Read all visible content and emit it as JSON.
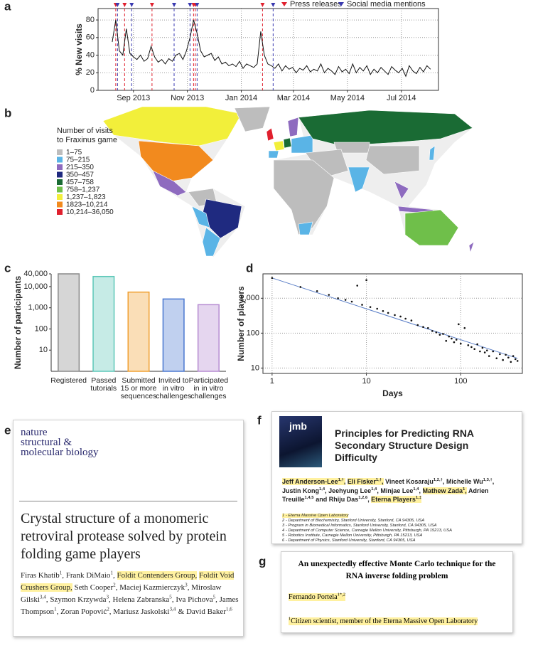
{
  "panel_labels": [
    "a",
    "b",
    "c",
    "d",
    "e",
    "f",
    "g"
  ],
  "chart_data": [
    {
      "type": "line",
      "y_label": "% New visits",
      "color": "#111111",
      "grid": true,
      "legend": "top-right",
      "x": [
        16,
        20,
        24,
        28,
        32,
        36,
        40,
        44,
        48,
        52,
        56,
        60,
        64,
        68,
        72,
        76,
        80,
        84,
        88,
        92,
        96,
        100,
        104,
        108,
        112,
        116,
        120,
        124,
        128,
        132,
        136,
        140,
        144,
        148,
        152,
        156,
        160,
        164,
        168,
        172,
        176,
        180,
        184,
        188,
        192,
        196,
        200,
        204,
        208,
        212,
        216,
        220,
        224,
        228,
        232,
        236,
        240,
        244,
        248,
        252,
        256,
        260,
        264,
        268,
        272,
        276,
        280,
        284,
        288,
        292,
        296,
        300,
        304,
        308,
        312,
        316,
        320,
        324,
        328,
        332,
        336,
        340,
        344,
        348,
        352,
        356,
        360,
        364,
        368,
        372,
        376
      ],
      "values": [
        55,
        80,
        45,
        40,
        70,
        42,
        38,
        35,
        40,
        33,
        36,
        50,
        38,
        32,
        35,
        30,
        36,
        33,
        40,
        42,
        35,
        45,
        60,
        80,
        65,
        45,
        38,
        40,
        42,
        34,
        38,
        30,
        32,
        28,
        30,
        27,
        33,
        25,
        30,
        28,
        26,
        30,
        67,
        40,
        30,
        28,
        25,
        30,
        22,
        28,
        24,
        26,
        20,
        25,
        23,
        28,
        21,
        24,
        22,
        30,
        20,
        25,
        22,
        18,
        27,
        21,
        24,
        19,
        30,
        20,
        26,
        22,
        28,
        18,
        24,
        20,
        26,
        22,
        18,
        27,
        23,
        20,
        25,
        16,
        28,
        22,
        19,
        26,
        21,
        28,
        24
      ],
      "xlim": [
        0,
        385
      ],
      "ylim": [
        0,
        93
      ],
      "xticks": [
        {
          "value": 40,
          "label": "Sep 2013"
        },
        {
          "value": 101,
          "label": "Nov 2013"
        },
        {
          "value": 162,
          "label": "Jan 2014"
        },
        {
          "value": 221,
          "label": "Mar 2014"
        },
        {
          "value": 282,
          "label": "May 2014"
        },
        {
          "value": 343,
          "label": "Jul 2014"
        }
      ],
      "yticks": [
        0,
        20,
        40,
        60,
        80
      ],
      "events": [
        {
          "name": "Press releases",
          "color": "#e0202e",
          "x": [
            20,
            30,
            61,
            108,
            110,
            186
          ]
        },
        {
          "name": "Social media mentions",
          "color": "#3a3ab0",
          "x": [
            22,
            38,
            86,
            104,
            112,
            198
          ]
        }
      ]
    },
    {
      "type": "bar",
      "y_label": "Number of participants",
      "log_y": true,
      "categories": [
        [
          "Registered"
        ],
        [
          "Passed",
          "tutorials"
        ],
        [
          "Submitted",
          "15 or more",
          "sequences"
        ],
        [
          "Invited to",
          "in vitro",
          "challenges"
        ],
        [
          "Participated",
          "in in vitro",
          "challenges"
        ]
      ],
      "values": [
        40000,
        30000,
        5500,
        2600,
        1400
      ],
      "colors": [
        "#8a8a8a",
        "#5cc7b8",
        "#f0a030",
        "#4a78d0",
        "#b58ad0"
      ],
      "ylim": [
        1,
        40000
      ],
      "yticks": [
        10,
        100,
        {
          "value": 1000,
          "label": "1,000"
        },
        {
          "value": 10000,
          "label": "10,000"
        },
        {
          "value": 40000,
          "label": "40,000"
        }
      ]
    },
    {
      "type": "scatter",
      "x_label": "Days",
      "y_label": "Number of players",
      "log_x": true,
      "log_y": true,
      "grid": true,
      "color": "#111111",
      "x": [
        1,
        2,
        3,
        4,
        5,
        6,
        7,
        8,
        9,
        10,
        11,
        13,
        15,
        17,
        20,
        23,
        26,
        30,
        35,
        40,
        45,
        50,
        55,
        60,
        65,
        70,
        75,
        80,
        85,
        90,
        95,
        100,
        110,
        120,
        130,
        140,
        150,
        160,
        170,
        180,
        190,
        200,
        220,
        240,
        260,
        280,
        300,
        320,
        340,
        360,
        380,
        400
      ],
      "values": [
        3800,
        2100,
        1600,
        1250,
        1000,
        900,
        800,
        2300,
        650,
        3300,
        560,
        500,
        430,
        380,
        330,
        300,
        260,
        230,
        170,
        150,
        140,
        115,
        105,
        90,
        95,
        60,
        80,
        70,
        55,
        65,
        180,
        50,
        140,
        45,
        40,
        35,
        48,
        30,
        38,
        28,
        32,
        22,
        30,
        19,
        25,
        17,
        24,
        20,
        15,
        22,
        18,
        16
      ],
      "fit": {
        "color": "#5b7fc7",
        "x": [
          1,
          400
        ],
        "y": [
          3800,
          19
        ]
      },
      "xlim": [
        0.8,
        450
      ],
      "ylim": [
        7,
        5000
      ],
      "xticks": [
        1,
        10,
        100
      ],
      "yticks": [
        10,
        100,
        {
          "value": 1000,
          "label": "1,000"
        }
      ]
    }
  ],
  "map": {
    "legend_title": [
      "Number of visits",
      "to Fraxinus game"
    ],
    "legend": [
      {
        "label": "1–75",
        "color": "#bdbdbd"
      },
      {
        "label": "75–215",
        "color": "#5ab4e6"
      },
      {
        "label": "215–350",
        "color": "#8e6bbf"
      },
      {
        "label": "350–457",
        "color": "#1f2a80"
      },
      {
        "label": "457–758",
        "color": "#1a6b34"
      },
      {
        "label": "758–1,237",
        "color": "#6fbf4a"
      },
      {
        "label": "1,237–1,823",
        "color": "#f2ef3a"
      },
      {
        "label": "1823–10,214",
        "color": "#f28a1e"
      },
      {
        "label": "10,214–36,050",
        "color": "#e0202e"
      }
    ]
  },
  "documents": {
    "e": {
      "journal": [
        "nature",
        "structural &",
        "molecular biology"
      ],
      "title": "Crystal structure of a monomeric retroviral protease solved by protein folding game players",
      "authors": [
        {
          "name": "Firas Khatib",
          "sup": "1",
          "after": ","
        },
        {
          "name": "Frank DiMaio",
          "sup": "1",
          "after": ","
        },
        {
          "name": "Foldit Contenders Group",
          "after": ",",
          "highlight": true
        },
        {
          "name": "Foldit Void Crushers Group",
          "after": ",",
          "highlight": true
        },
        {
          "name": "Seth Cooper",
          "sup": "2",
          "after": ","
        },
        {
          "name": "Maciej Kazmierczyk",
          "sup": "3",
          "after": ","
        },
        {
          "name": "Miroslaw Gilski",
          "sup": "3,4",
          "after": ","
        },
        {
          "name": "Szymon Krzywda",
          "sup": "3",
          "after": ","
        },
        {
          "name": "Helena Zabranska",
          "sup": "5",
          "after": ","
        },
        {
          "name": "Iva Pichova",
          "sup": "5",
          "after": ","
        },
        {
          "name": "James Thompson",
          "sup": "1",
          "after": ","
        },
        {
          "name": "Zoran Popović",
          "sup": "2",
          "after": ","
        },
        {
          "name": "Mariusz Jaskolski",
          "sup": "3,4",
          "after": "&"
        },
        {
          "name": "David Baker",
          "sup": "1,6"
        }
      ]
    },
    "f": {
      "journal": "jmb",
      "title": "Principles for Predicting RNA Secondary Structure Design Difficulty",
      "authors": [
        {
          "name": "Jeff Anderson-Lee",
          "sup": "1,†",
          "after": ",",
          "highlight": true
        },
        {
          "name": "Eli Fisker",
          "sup": "1,†",
          "after": ",",
          "highlight": true
        },
        {
          "name": "Vineet Kosaraju",
          "sup": "1,2,†",
          "after": ","
        },
        {
          "name": "Michelle Wu",
          "sup": "1,3,†",
          "after": ","
        },
        {
          "name": "Justin Kong",
          "sup": "1,4",
          "after": ","
        },
        {
          "name": "Jeehyung Lee",
          "sup": "1,4",
          "after": ","
        },
        {
          "name": "Minjae Lee",
          "sup": "1,4",
          "after": ","
        },
        {
          "name": "Mathew Zada",
          "sup": "1",
          "after": ",",
          "highlight": true
        },
        {
          "name": "Adrien Treuille",
          "sup": "1,4,5",
          "after": "and"
        },
        {
          "name": "Rhiju Das",
          "sup": "1,2,6",
          "after": ","
        },
        {
          "name": "Eterna Players",
          "sup": "1,‡",
          "highlight": true
        }
      ],
      "affiliations": [
        {
          "text": "1 - Eterna Massive Open Laboratory",
          "highlight": true
        },
        {
          "text": "2 - Department of Biochemistry, Stanford University, Stanford, CA 94305, USA"
        },
        {
          "text": "3 - Program in Biomedical Informatics, Stanford University, Stanford, CA 94305, USA"
        },
        {
          "text": "4 - Department of Computer Science, Carnegie Mellon University, Pittsburgh, PA 15213, USA"
        },
        {
          "text": "5 - Robotics Institute, Carnegie Mellon University, Pittsburgh, PA 15213, USA"
        },
        {
          "text": "6 - Department of Physics, Stanford University, Stanford, CA 94305, USA"
        }
      ]
    },
    "g": {
      "title": "An unexpectedly effective Monte Carlo technique for the RNA inverse folding problem",
      "authors": [
        {
          "name": "Fernando Portela",
          "sup": "1*,2",
          "highlight": true
        }
      ],
      "affiliations": [
        {
          "sup": "1",
          "text": "Citizen scientist, member of the Eterna Massive Open Laboratory",
          "highlight": true
        }
      ]
    }
  }
}
